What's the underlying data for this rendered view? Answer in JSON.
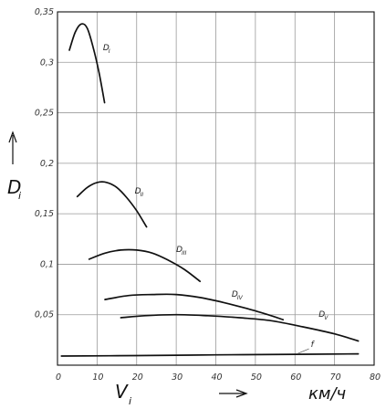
{
  "chart_data": {
    "type": "line",
    "xlabel": "V",
    "xlabel_sub": "i",
    "xunit": "км/ч",
    "ylabel": "D",
    "ylabel_sub": "i",
    "xlim": [
      0,
      80
    ],
    "ylim": [
      0,
      0.35
    ],
    "x_ticks": [
      "0",
      "10",
      "20",
      "30",
      "40",
      "50",
      "60",
      "70",
      "80"
    ],
    "y_ticks": [
      "0,05",
      "0,1",
      "0,15",
      "0,2",
      "0,25",
      "0,3",
      "0,35"
    ],
    "grid": true,
    "series": [
      {
        "name": "D",
        "sub": "I",
        "x": [
          3,
          4.5,
          6,
          7.5,
          9,
          10.5,
          11.9
        ],
        "y": [
          0.312,
          0.33,
          0.338,
          0.334,
          0.315,
          0.29,
          0.26
        ]
      },
      {
        "name": "D",
        "sub": "II",
        "x": [
          5,
          7.5,
          10,
          12.5,
          15,
          17.5,
          20,
          22.5
        ],
        "y": [
          0.167,
          0.176,
          0.181,
          0.181,
          0.176,
          0.166,
          0.153,
          0.137
        ]
      },
      {
        "name": "D",
        "sub": "III",
        "x": [
          8,
          12,
          16,
          20,
          24,
          28,
          32,
          36
        ],
        "y": [
          0.105,
          0.111,
          0.114,
          0.114,
          0.111,
          0.104,
          0.095,
          0.083
        ]
      },
      {
        "name": "D",
        "sub": "IV",
        "x": [
          12,
          18,
          24,
          30,
          36,
          42,
          48,
          54,
          57
        ],
        "y": [
          0.065,
          0.069,
          0.07,
          0.07,
          0.067,
          0.062,
          0.056,
          0.049,
          0.045
        ]
      },
      {
        "name": "D",
        "sub": "V",
        "x": [
          16,
          22,
          30,
          38,
          46,
          54,
          62,
          70,
          76
        ],
        "y": [
          0.047,
          0.049,
          0.05,
          0.049,
          0.047,
          0.044,
          0.038,
          0.031,
          0.024
        ]
      },
      {
        "name": "f",
        "sub": "",
        "x": [
          1,
          20,
          40,
          60,
          76
        ],
        "y": [
          0.009,
          0.0095,
          0.0102,
          0.0108,
          0.0112
        ]
      }
    ]
  }
}
